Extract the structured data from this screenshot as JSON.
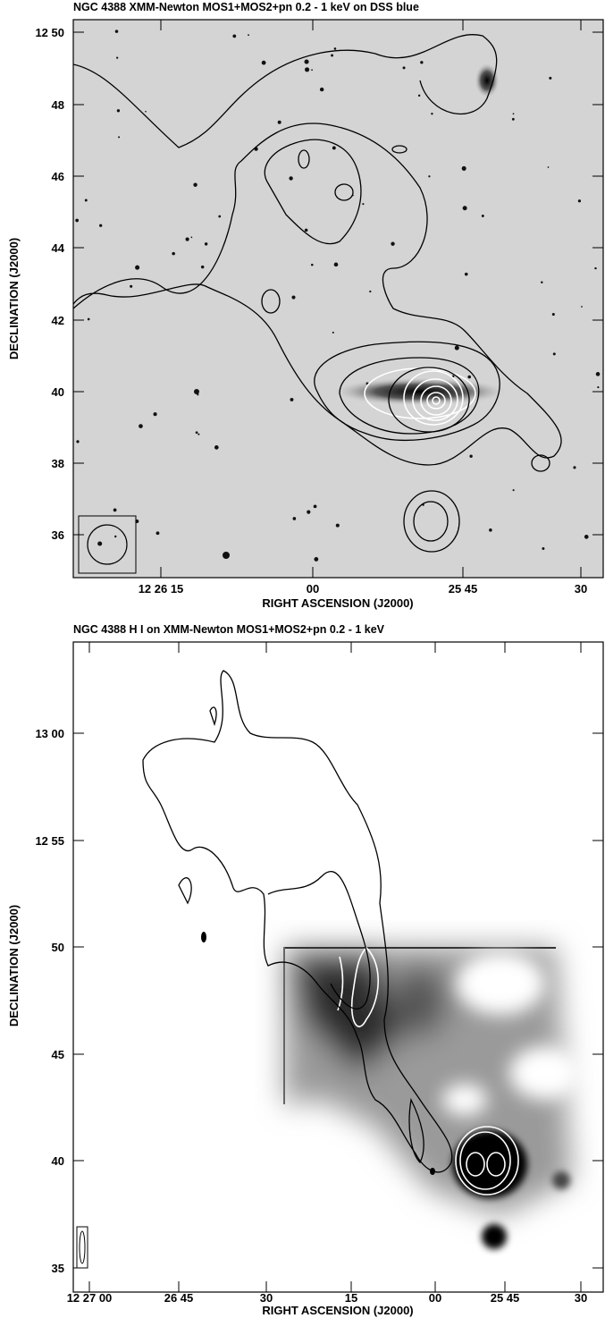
{
  "panels": [
    {
      "title": "NGC 4388 XMM-Newton MOS1+MOS2+pn 0.2 - 1 keV on DSS blue",
      "x_label": "RIGHT ASCENSION (J2000)",
      "y_label": "DECLINATION (J2000)",
      "xticks": [
        "12 26 15",
        "00",
        "25 45",
        "30"
      ],
      "yticks": [
        "12 50",
        "48",
        "46",
        "44",
        "42",
        "40",
        "38",
        "36"
      ]
    },
    {
      "title": "NGC 4388 H I on XMM-Newton MOS1+MOS2+pn 0.2 - 1 keV",
      "x_label": "RIGHT ASCENSION (J2000)",
      "y_label": "DECLINATION (J2000)",
      "xticks": [
        "12 27 00",
        "26 45",
        "30",
        "15",
        "00",
        "25 45",
        "30"
      ],
      "yticks": [
        "13 00",
        "12 55",
        "50",
        "45",
        "40",
        "35"
      ]
    }
  ]
}
